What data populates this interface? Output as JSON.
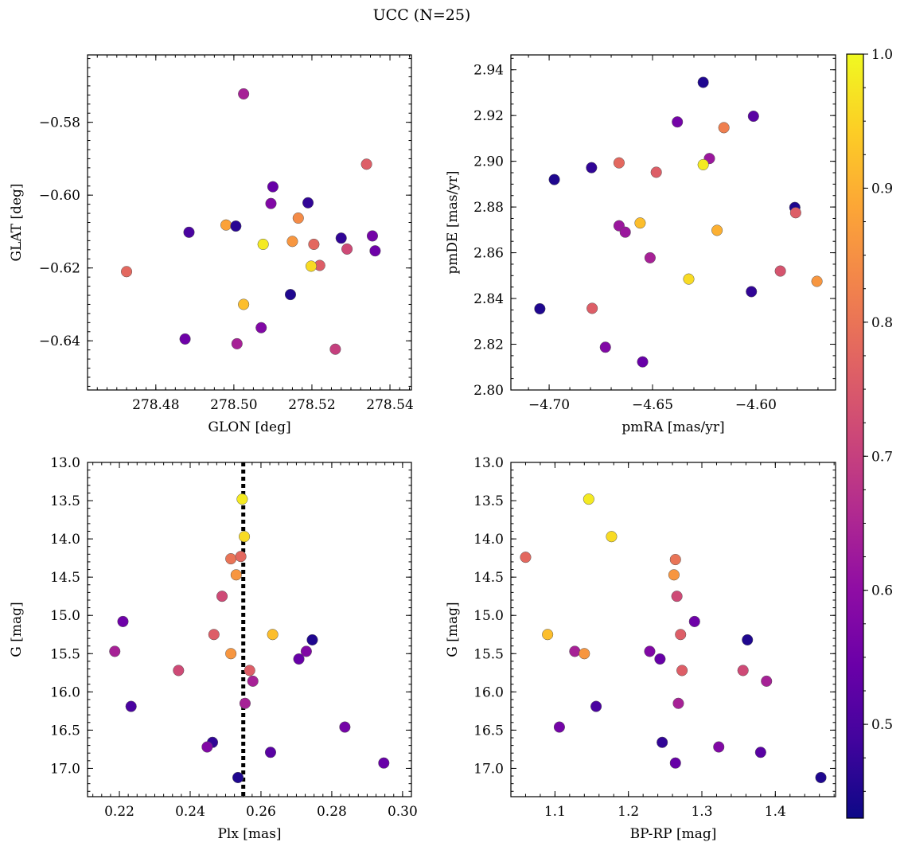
{
  "figure": {
    "title": "UCC (N=25)"
  },
  "colorbar": {
    "colormap": "plasma",
    "range": [
      0.43,
      1.0
    ],
    "ticks": [
      0.5,
      0.6,
      0.7,
      0.8,
      0.9,
      1.0
    ],
    "tick_labels": [
      "0.5",
      "0.6",
      "0.7",
      "0.8",
      "0.9",
      "1.0"
    ]
  },
  "style": {
    "marker_edge": "#555555",
    "line_color": "#000000"
  },
  "chart_data": [
    {
      "type": "scatter",
      "xlabel": "GLON [deg]",
      "ylabel": "GLAT [deg]",
      "xlim": [
        278.4625,
        278.5455
      ],
      "ylim": [
        -0.6535,
        -0.5615
      ],
      "y_inverted": false,
      "xticks": [
        278.48,
        278.5,
        278.52,
        278.54
      ],
      "xtick_labels": [
        "278.48",
        "278.50",
        "278.52",
        "278.54"
      ],
      "yticks": [
        -0.58,
        -0.6,
        -0.62,
        -0.64
      ],
      "ytick_labels": [
        "−0.58",
        "−0.60",
        "−0.62",
        "−0.64"
      ],
      "x_minor_step": 0.0025,
      "y_minor_step": 0.0025,
      "points": [
        {
          "x": 278.5025,
          "y": -0.5722,
          "c": 0.64
        },
        {
          "x": 278.534,
          "y": -0.5915,
          "c": 0.76
        },
        {
          "x": 278.51,
          "y": -0.5977,
          "c": 0.54
        },
        {
          "x": 278.519,
          "y": -0.6021,
          "c": 0.47
        },
        {
          "x": 278.5095,
          "y": -0.6023,
          "c": 0.58
        },
        {
          "x": 278.5165,
          "y": -0.6063,
          "c": 0.84
        },
        {
          "x": 278.498,
          "y": -0.6082,
          "c": 0.88
        },
        {
          "x": 278.5005,
          "y": -0.6085,
          "c": 0.46
        },
        {
          "x": 278.4885,
          "y": -0.6102,
          "c": 0.5
        },
        {
          "x": 278.5355,
          "y": -0.6112,
          "c": 0.56
        },
        {
          "x": 278.5275,
          "y": -0.6118,
          "c": 0.47
        },
        {
          "x": 278.515,
          "y": -0.6127,
          "c": 0.86
        },
        {
          "x": 278.5075,
          "y": -0.6135,
          "c": 0.98
        },
        {
          "x": 278.5205,
          "y": -0.6135,
          "c": 0.78
        },
        {
          "x": 278.529,
          "y": -0.6148,
          "c": 0.72
        },
        {
          "x": 278.5362,
          "y": -0.6153,
          "c": 0.55
        },
        {
          "x": 278.522,
          "y": -0.6193,
          "c": 0.76
        },
        {
          "x": 278.5198,
          "y": -0.6195,
          "c": 0.96
        },
        {
          "x": 278.4725,
          "y": -0.621,
          "c": 0.78
        },
        {
          "x": 278.5145,
          "y": -0.6273,
          "c": 0.45
        },
        {
          "x": 278.5025,
          "y": -0.63,
          "c": 0.92
        },
        {
          "x": 278.507,
          "y": -0.6364,
          "c": 0.58
        },
        {
          "x": 278.4875,
          "y": -0.6395,
          "c": 0.55
        },
        {
          "x": 278.5008,
          "y": -0.6408,
          "c": 0.64
        },
        {
          "x": 278.526,
          "y": -0.6423,
          "c": 0.7
        }
      ]
    },
    {
      "type": "scatter",
      "xlabel": "pmRA [mas/yr]",
      "ylabel": "pmDE [mas/yr]",
      "xlim": [
        -4.7185,
        -4.5615
      ],
      "ylim": [
        2.8,
        2.9465
      ],
      "y_inverted": false,
      "xticks": [
        -4.7,
        -4.65,
        -4.6
      ],
      "xtick_labels": [
        "−4.70",
        "−4.65",
        "−4.60"
      ],
      "yticks": [
        2.8,
        2.82,
        2.84,
        2.86,
        2.88,
        2.9,
        2.92,
        2.94
      ],
      "ytick_labels": [
        "2.80",
        "2.82",
        "2.84",
        "2.86",
        "2.88",
        "2.90",
        "2.92",
        "2.94"
      ],
      "x_minor_step": 0.01,
      "y_minor_step": 0.005,
      "points": [
        {
          "x": -4.6255,
          "y": 2.9345,
          "c": 0.45
        },
        {
          "x": -4.638,
          "y": 2.9172,
          "c": 0.56
        },
        {
          "x": -4.6012,
          "y": 2.9197,
          "c": 0.52
        },
        {
          "x": -4.6155,
          "y": 2.9147,
          "c": 0.82
        },
        {
          "x": -4.6225,
          "y": 2.9012,
          "c": 0.62
        },
        {
          "x": -4.6255,
          "y": 2.8985,
          "c": 0.98
        },
        {
          "x": -4.6662,
          "y": 2.8993,
          "c": 0.78
        },
        {
          "x": -4.6795,
          "y": 2.8972,
          "c": 0.47
        },
        {
          "x": -4.6482,
          "y": 2.8952,
          "c": 0.76
        },
        {
          "x": -4.6975,
          "y": 2.892,
          "c": 0.45
        },
        {
          "x": -4.5812,
          "y": 2.8798,
          "c": 0.45
        },
        {
          "x": -4.5808,
          "y": 2.8775,
          "c": 0.76
        },
        {
          "x": -4.656,
          "y": 2.873,
          "c": 0.92
        },
        {
          "x": -4.6662,
          "y": 2.8718,
          "c": 0.62
        },
        {
          "x": -4.6632,
          "y": 2.869,
          "c": 0.62
        },
        {
          "x": -4.6188,
          "y": 2.8698,
          "c": 0.9
        },
        {
          "x": -4.6512,
          "y": 2.8578,
          "c": 0.64
        },
        {
          "x": -4.5882,
          "y": 2.852,
          "c": 0.74
        },
        {
          "x": -4.6325,
          "y": 2.8485,
          "c": 0.96
        },
        {
          "x": -4.5705,
          "y": 2.8475,
          "c": 0.86
        },
        {
          "x": -4.6022,
          "y": 2.843,
          "c": 0.47
        },
        {
          "x": -4.7045,
          "y": 2.8355,
          "c": 0.45
        },
        {
          "x": -4.6792,
          "y": 2.8357,
          "c": 0.76
        },
        {
          "x": -4.6728,
          "y": 2.8187,
          "c": 0.58
        },
        {
          "x": -4.6548,
          "y": 2.8123,
          "c": 0.54
        }
      ]
    },
    {
      "type": "scatter",
      "xlabel": "Plx [mas]",
      "ylabel": "G [mag]",
      "xlim": [
        0.211,
        0.3025
      ],
      "ylim": [
        13.0,
        17.37
      ],
      "y_inverted": true,
      "xticks": [
        0.22,
        0.24,
        0.26,
        0.28,
        0.3
      ],
      "xtick_labels": [
        "0.22",
        "0.24",
        "0.26",
        "0.28",
        "0.30"
      ],
      "yticks": [
        13.0,
        13.5,
        14.0,
        14.5,
        15.0,
        15.5,
        16.0,
        16.5,
        17.0
      ],
      "ytick_labels": [
        "13.0",
        "13.5",
        "14.0",
        "14.5",
        "15.0",
        "15.5",
        "16.0",
        "16.5",
        "17.0"
      ],
      "x_minor_step": 0.0025,
      "y_minor_step": 0.1,
      "vline": 0.255,
      "points": [
        {
          "x": 0.2547,
          "y": 13.48,
          "c": 0.98
        },
        {
          "x": 0.2553,
          "y": 13.97,
          "c": 0.96
        },
        {
          "x": 0.2515,
          "y": 14.26,
          "c": 0.8
        },
        {
          "x": 0.2543,
          "y": 14.23,
          "c": 0.78
        },
        {
          "x": 0.253,
          "y": 14.47,
          "c": 0.86
        },
        {
          "x": 0.249,
          "y": 14.75,
          "c": 0.72
        },
        {
          "x": 0.221,
          "y": 15.08,
          "c": 0.55
        },
        {
          "x": 0.2467,
          "y": 15.25,
          "c": 0.76
        },
        {
          "x": 0.2633,
          "y": 15.25,
          "c": 0.92
        },
        {
          "x": 0.2745,
          "y": 15.32,
          "c": 0.45
        },
        {
          "x": 0.2187,
          "y": 15.47,
          "c": 0.64
        },
        {
          "x": 0.2515,
          "y": 15.5,
          "c": 0.86
        },
        {
          "x": 0.2728,
          "y": 15.47,
          "c": 0.58
        },
        {
          "x": 0.2707,
          "y": 15.57,
          "c": 0.54
        },
        {
          "x": 0.2367,
          "y": 15.72,
          "c": 0.72
        },
        {
          "x": 0.2568,
          "y": 15.72,
          "c": 0.76
        },
        {
          "x": 0.2577,
          "y": 15.86,
          "c": 0.64
        },
        {
          "x": 0.2555,
          "y": 16.15,
          "c": 0.64
        },
        {
          "x": 0.2233,
          "y": 16.19,
          "c": 0.5
        },
        {
          "x": 0.2837,
          "y": 16.46,
          "c": 0.56
        },
        {
          "x": 0.2463,
          "y": 16.66,
          "c": 0.47
        },
        {
          "x": 0.2448,
          "y": 16.72,
          "c": 0.58
        },
        {
          "x": 0.2627,
          "y": 16.79,
          "c": 0.52
        },
        {
          "x": 0.2947,
          "y": 16.93,
          "c": 0.54
        },
        {
          "x": 0.2535,
          "y": 17.12,
          "c": 0.45
        }
      ]
    },
    {
      "type": "scatter",
      "xlabel": "BP-RP [mag]",
      "ylabel": "G [mag]",
      "xlim": [
        1.04,
        1.482
      ],
      "ylim": [
        13.0,
        17.37
      ],
      "y_inverted": true,
      "xticks": [
        1.1,
        1.2,
        1.3,
        1.4
      ],
      "xtick_labels": [
        "1.1",
        "1.2",
        "1.3",
        "1.4"
      ],
      "yticks": [
        13.0,
        13.5,
        14.0,
        14.5,
        15.0,
        15.5,
        16.0,
        16.5,
        17.0
      ],
      "ytick_labels": [
        "13.0",
        "13.5",
        "14.0",
        "14.5",
        "15.0",
        "15.5",
        "16.0",
        "16.5",
        "17.0"
      ],
      "x_minor_step": 0.02,
      "y_minor_step": 0.1,
      "points": [
        {
          "x": 1.146,
          "y": 13.48,
          "c": 0.98
        },
        {
          "x": 1.177,
          "y": 13.97,
          "c": 0.96
        },
        {
          "x": 1.06,
          "y": 14.24,
          "c": 0.78
        },
        {
          "x": 1.264,
          "y": 14.27,
          "c": 0.8
        },
        {
          "x": 1.262,
          "y": 14.47,
          "c": 0.86
        },
        {
          "x": 1.266,
          "y": 14.75,
          "c": 0.72
        },
        {
          "x": 1.29,
          "y": 15.08,
          "c": 0.55
        },
        {
          "x": 1.09,
          "y": 15.25,
          "c": 0.92
        },
        {
          "x": 1.271,
          "y": 15.25,
          "c": 0.76
        },
        {
          "x": 1.362,
          "y": 15.32,
          "c": 0.45
        },
        {
          "x": 1.127,
          "y": 15.47,
          "c": 0.64
        },
        {
          "x": 1.14,
          "y": 15.5,
          "c": 0.86
        },
        {
          "x": 1.229,
          "y": 15.47,
          "c": 0.58
        },
        {
          "x": 1.243,
          "y": 15.57,
          "c": 0.54
        },
        {
          "x": 1.273,
          "y": 15.72,
          "c": 0.76
        },
        {
          "x": 1.356,
          "y": 15.72,
          "c": 0.72
        },
        {
          "x": 1.388,
          "y": 15.86,
          "c": 0.64
        },
        {
          "x": 1.268,
          "y": 16.15,
          "c": 0.64
        },
        {
          "x": 1.156,
          "y": 16.19,
          "c": 0.5
        },
        {
          "x": 1.106,
          "y": 16.46,
          "c": 0.56
        },
        {
          "x": 1.246,
          "y": 16.66,
          "c": 0.47
        },
        {
          "x": 1.323,
          "y": 16.72,
          "c": 0.58
        },
        {
          "x": 1.38,
          "y": 16.79,
          "c": 0.52
        },
        {
          "x": 1.264,
          "y": 16.93,
          "c": 0.54
        },
        {
          "x": 1.462,
          "y": 17.12,
          "c": 0.45
        }
      ]
    }
  ]
}
